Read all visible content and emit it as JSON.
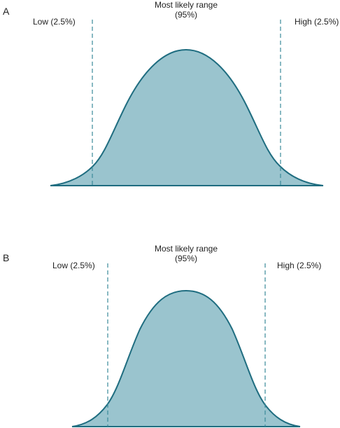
{
  "panels": [
    {
      "letter": "A",
      "center_label_line1": "Most likely range",
      "center_label_line2": "(95%)",
      "low_label": "Low (2.5%)",
      "high_label": "High (2.5%)"
    },
    {
      "letter": "B",
      "center_label_line1": "Most likely range",
      "center_label_line2": "(95%)",
      "low_label": "Low (2.5%)",
      "high_label": "High (2.5%)"
    }
  ],
  "colors": {
    "fill": "#9ac4ce",
    "stroke": "#1f6d80",
    "dash": "#3a8a9a"
  }
}
